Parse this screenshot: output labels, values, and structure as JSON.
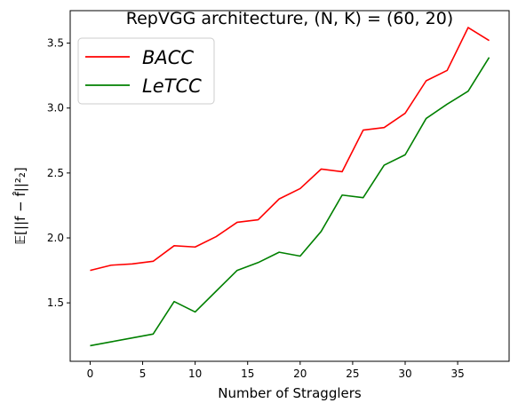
{
  "chart_data": {
    "type": "line",
    "title": "RepVGG architecture, (N, K) = (60, 20)",
    "xlabel": "Number of Stragglers",
    "ylabel": "𝔼[||f − f̂||²₂]",
    "xlim": [
      -1.9,
      39.9
    ],
    "ylim": [
      1.05,
      3.75
    ],
    "xticks": [
      0,
      5,
      10,
      15,
      20,
      25,
      30,
      35
    ],
    "yticks": [
      1.5,
      2.0,
      2.5,
      3.0,
      3.5
    ],
    "xtick_labels": [
      "0",
      "5",
      "10",
      "15",
      "20",
      "25",
      "30",
      "35"
    ],
    "ytick_labels": [
      "1.5",
      "2.0",
      "2.5",
      "3.0",
      "3.5"
    ],
    "grid": false,
    "legend_position": "top-left",
    "x": [
      0,
      2,
      4,
      6,
      8,
      10,
      12,
      14,
      16,
      18,
      20,
      22,
      24,
      26,
      28,
      30,
      32,
      34,
      36,
      38
    ],
    "series": [
      {
        "name": "BACC",
        "color": "#ff0000",
        "values": [
          1.75,
          1.79,
          1.8,
          1.82,
          1.94,
          1.93,
          2.01,
          2.12,
          2.14,
          2.3,
          2.38,
          2.53,
          2.51,
          2.83,
          2.85,
          2.96,
          3.21,
          3.29,
          3.62,
          3.52
        ]
      },
      {
        "name": "LeTCC",
        "color": "#008000",
        "values": [
          1.17,
          1.2,
          1.23,
          1.26,
          1.51,
          1.43,
          1.59,
          1.75,
          1.81,
          1.89,
          1.86,
          2.05,
          2.33,
          2.31,
          2.56,
          2.64,
          2.92,
          3.03,
          3.13,
          3.39
        ]
      }
    ]
  }
}
